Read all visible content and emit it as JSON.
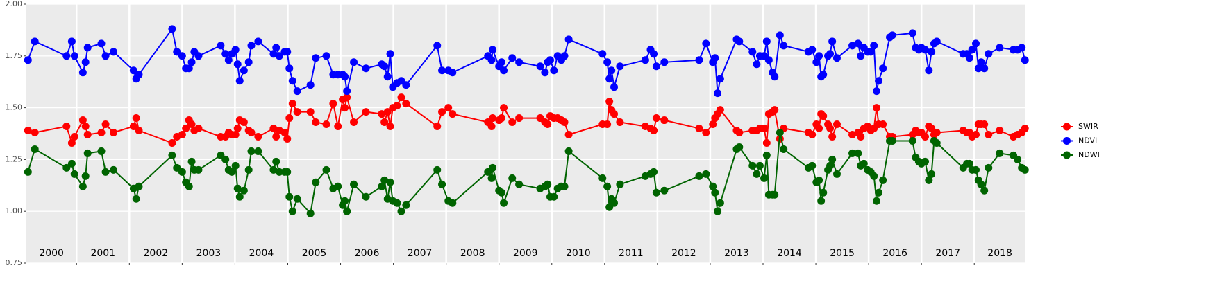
{
  "chart_data": {
    "type": "line",
    "x": [
      2000.08,
      2000.21,
      2000.81,
      2000.91,
      2000.96,
      2001.12,
      2001.17,
      2001.21,
      2001.47,
      2001.55,
      2001.7,
      2002.08,
      2002.13,
      2002.18,
      2002.81,
      2002.9,
      2003.0,
      2003.07,
      2003.13,
      2003.18,
      2003.23,
      2003.31,
      2003.73,
      2003.82,
      2003.88,
      2003.94,
      2004.01,
      2004.05,
      2004.09,
      2004.17,
      2004.26,
      2004.31,
      2004.44,
      2004.73,
      2004.78,
      2004.84,
      2004.94,
      2004.99,
      2005.03,
      2005.09,
      2005.18,
      2005.43,
      2005.53,
      2005.73,
      2005.86,
      2005.95,
      2006.04,
      2006.08,
      2006.12,
      2006.25,
      2006.48,
      2006.78,
      2006.83,
      2006.89,
      2006.94,
      2006.99,
      2007.07,
      2007.15,
      2007.24,
      2007.83,
      2007.92,
      2008.04,
      2008.12,
      2008.79,
      2008.86,
      2008.88,
      2009.0,
      2009.05,
      2009.09,
      2009.25,
      2009.38,
      2009.78,
      2009.87,
      2009.92,
      2009.97,
      2010.04,
      2010.11,
      2010.18,
      2010.24,
      2010.32,
      2010.96,
      2011.05,
      2011.09,
      2011.13,
      2011.18,
      2011.29,
      2011.77,
      2011.87,
      2011.93,
      2011.98,
      2012.13,
      2012.79,
      2012.92,
      2013.05,
      2013.09,
      2013.14,
      2013.19,
      2013.5,
      2013.55,
      2013.8,
      2013.88,
      2013.94,
      2014.02,
      2014.07,
      2014.11,
      2014.18,
      2014.22,
      2014.32,
      2014.39,
      2014.86,
      2014.93,
      2015.01,
      2015.06,
      2015.1,
      2015.14,
      2015.23,
      2015.27,
      2015.31,
      2015.4,
      2015.69,
      2015.8,
      2015.85,
      2015.91,
      2015.98,
      2016.04,
      2016.1,
      2016.15,
      2016.19,
      2016.27,
      2016.4,
      2016.45,
      2016.83,
      2016.89,
      2016.95,
      2017.0,
      2017.07,
      2017.14,
      2017.19,
      2017.24,
      2017.29,
      2017.79,
      2017.86,
      2017.91,
      2017.96,
      2018.03,
      2018.08,
      2018.13,
      2018.19,
      2018.27,
      2018.48,
      2018.74,
      2018.82,
      2018.9,
      2018.96
    ],
    "series": [
      {
        "name": "SWIR",
        "color": "#ff0000",
        "values": [
          1.39,
          1.38,
          1.41,
          1.33,
          1.36,
          1.44,
          1.41,
          1.37,
          1.38,
          1.42,
          1.38,
          1.41,
          1.45,
          1.39,
          1.33,
          1.36,
          1.37,
          1.4,
          1.44,
          1.42,
          1.39,
          1.4,
          1.36,
          1.36,
          1.38,
          1.37,
          1.37,
          1.4,
          1.44,
          1.43,
          1.39,
          1.38,
          1.36,
          1.4,
          1.36,
          1.39,
          1.38,
          1.35,
          1.45,
          1.52,
          1.48,
          1.48,
          1.43,
          1.42,
          1.52,
          1.41,
          1.54,
          1.5,
          1.55,
          1.43,
          1.48,
          1.47,
          1.43,
          1.48,
          1.41,
          1.5,
          1.51,
          1.55,
          1.52,
          1.41,
          1.48,
          1.5,
          1.47,
          1.43,
          1.41,
          1.45,
          1.44,
          1.45,
          1.5,
          1.43,
          1.45,
          1.45,
          1.43,
          1.42,
          1.46,
          1.45,
          1.45,
          1.44,
          1.43,
          1.37,
          1.42,
          1.42,
          1.53,
          1.49,
          1.47,
          1.43,
          1.41,
          1.4,
          1.39,
          1.45,
          1.44,
          1.4,
          1.38,
          1.42,
          1.45,
          1.47,
          1.49,
          1.39,
          1.38,
          1.39,
          1.39,
          1.4,
          1.4,
          1.33,
          1.47,
          1.48,
          1.49,
          1.35,
          1.4,
          1.38,
          1.37,
          1.42,
          1.4,
          1.47,
          1.46,
          1.42,
          1.4,
          1.36,
          1.42,
          1.37,
          1.38,
          1.36,
          1.4,
          1.41,
          1.39,
          1.4,
          1.5,
          1.42,
          1.42,
          1.36,
          1.36,
          1.37,
          1.39,
          1.38,
          1.38,
          1.36,
          1.41,
          1.4,
          1.37,
          1.38,
          1.39,
          1.38,
          1.38,
          1.36,
          1.37,
          1.42,
          1.42,
          1.42,
          1.37,
          1.39,
          1.36,
          1.37,
          1.38,
          1.4
        ]
      },
      {
        "name": "NDVI",
        "color": "#0000ff",
        "values": [
          1.73,
          1.82,
          1.75,
          1.82,
          1.75,
          1.67,
          1.72,
          1.79,
          1.81,
          1.75,
          1.77,
          1.68,
          1.64,
          1.66,
          1.88,
          1.77,
          1.75,
          1.69,
          1.69,
          1.72,
          1.77,
          1.75,
          1.8,
          1.76,
          1.73,
          1.76,
          1.78,
          1.71,
          1.63,
          1.68,
          1.72,
          1.8,
          1.82,
          1.76,
          1.79,
          1.75,
          1.77,
          1.77,
          1.69,
          1.63,
          1.58,
          1.61,
          1.74,
          1.75,
          1.66,
          1.66,
          1.66,
          1.65,
          1.58,
          1.72,
          1.69,
          1.71,
          1.7,
          1.65,
          1.76,
          1.6,
          1.62,
          1.63,
          1.61,
          1.8,
          1.68,
          1.68,
          1.67,
          1.75,
          1.73,
          1.78,
          1.7,
          1.72,
          1.68,
          1.74,
          1.72,
          1.7,
          1.67,
          1.72,
          1.73,
          1.68,
          1.75,
          1.73,
          1.75,
          1.83,
          1.76,
          1.72,
          1.64,
          1.68,
          1.6,
          1.7,
          1.73,
          1.78,
          1.76,
          1.7,
          1.72,
          1.73,
          1.81,
          1.72,
          1.74,
          1.57,
          1.64,
          1.83,
          1.82,
          1.77,
          1.71,
          1.75,
          1.75,
          1.82,
          1.73,
          1.67,
          1.65,
          1.85,
          1.8,
          1.77,
          1.78,
          1.72,
          1.75,
          1.65,
          1.66,
          1.75,
          1.76,
          1.82,
          1.74,
          1.8,
          1.81,
          1.75,
          1.79,
          1.77,
          1.77,
          1.8,
          1.58,
          1.63,
          1.69,
          1.84,
          1.85,
          1.86,
          1.79,
          1.78,
          1.79,
          1.78,
          1.68,
          1.77,
          1.81,
          1.82,
          1.76,
          1.76,
          1.74,
          1.78,
          1.81,
          1.69,
          1.72,
          1.69,
          1.76,
          1.79,
          1.78,
          1.78,
          1.79,
          1.73
        ]
      },
      {
        "name": "NDWI",
        "color": "#006400",
        "values": [
          1.19,
          1.3,
          1.21,
          1.23,
          1.18,
          1.12,
          1.17,
          1.28,
          1.29,
          1.19,
          1.2,
          1.11,
          1.06,
          1.12,
          1.27,
          1.21,
          1.19,
          1.14,
          1.12,
          1.24,
          1.2,
          1.2,
          1.27,
          1.25,
          1.2,
          1.19,
          1.22,
          1.11,
          1.07,
          1.1,
          1.2,
          1.29,
          1.29,
          1.2,
          1.24,
          1.19,
          1.19,
          1.19,
          1.07,
          1.0,
          1.06,
          0.99,
          1.14,
          1.2,
          1.11,
          1.12,
          1.03,
          1.05,
          1.0,
          1.13,
          1.07,
          1.12,
          1.15,
          1.06,
          1.14,
          1.05,
          1.04,
          1.0,
          1.03,
          1.2,
          1.13,
          1.05,
          1.04,
          1.19,
          1.16,
          1.21,
          1.1,
          1.09,
          1.04,
          1.16,
          1.13,
          1.11,
          1.12,
          1.13,
          1.07,
          1.07,
          1.11,
          1.12,
          1.12,
          1.29,
          1.16,
          1.12,
          1.02,
          1.06,
          1.04,
          1.13,
          1.17,
          1.18,
          1.19,
          1.09,
          1.1,
          1.17,
          1.18,
          1.12,
          1.09,
          1.0,
          1.04,
          1.3,
          1.31,
          1.22,
          1.18,
          1.22,
          1.16,
          1.27,
          1.08,
          1.08,
          1.08,
          1.38,
          1.3,
          1.21,
          1.22,
          1.14,
          1.15,
          1.05,
          1.09,
          1.2,
          1.22,
          1.25,
          1.18,
          1.28,
          1.28,
          1.22,
          1.23,
          1.2,
          1.19,
          1.17,
          1.05,
          1.09,
          1.15,
          1.34,
          1.34,
          1.34,
          1.26,
          1.24,
          1.23,
          1.24,
          1.15,
          1.18,
          1.34,
          1.33,
          1.21,
          1.23,
          1.23,
          1.2,
          1.2,
          1.15,
          1.13,
          1.1,
          1.21,
          1.28,
          1.27,
          1.25,
          1.21,
          1.2
        ]
      }
    ],
    "year_labels": [
      "2000",
      "2001",
      "2002",
      "2003",
      "2004",
      "2005",
      "2006",
      "2007",
      "2008",
      "2009",
      "2010",
      "2011",
      "2012",
      "2013",
      "2014",
      "2015",
      "2016",
      "2017",
      "2018"
    ],
    "xlim": [
      2000.05,
      2018.97
    ],
    "xticks": [
      2001,
      2002,
      2003,
      2004,
      2005,
      2006,
      2007,
      2008,
      2009,
      2010,
      2011,
      2012,
      2013,
      2014,
      2015,
      2016,
      2017,
      2018
    ],
    "ylim": [
      0.75,
      2.0
    ],
    "yticks": [
      0.75,
      {
        "value": 1.0,
        "label": "1.00"
      },
      1.25,
      {
        "value": 1.5,
        "label": "1.50"
      },
      1.75,
      {
        "value": 2.0,
        "label": "2.00"
      }
    ],
    "grid": true,
    "legend": "right"
  }
}
